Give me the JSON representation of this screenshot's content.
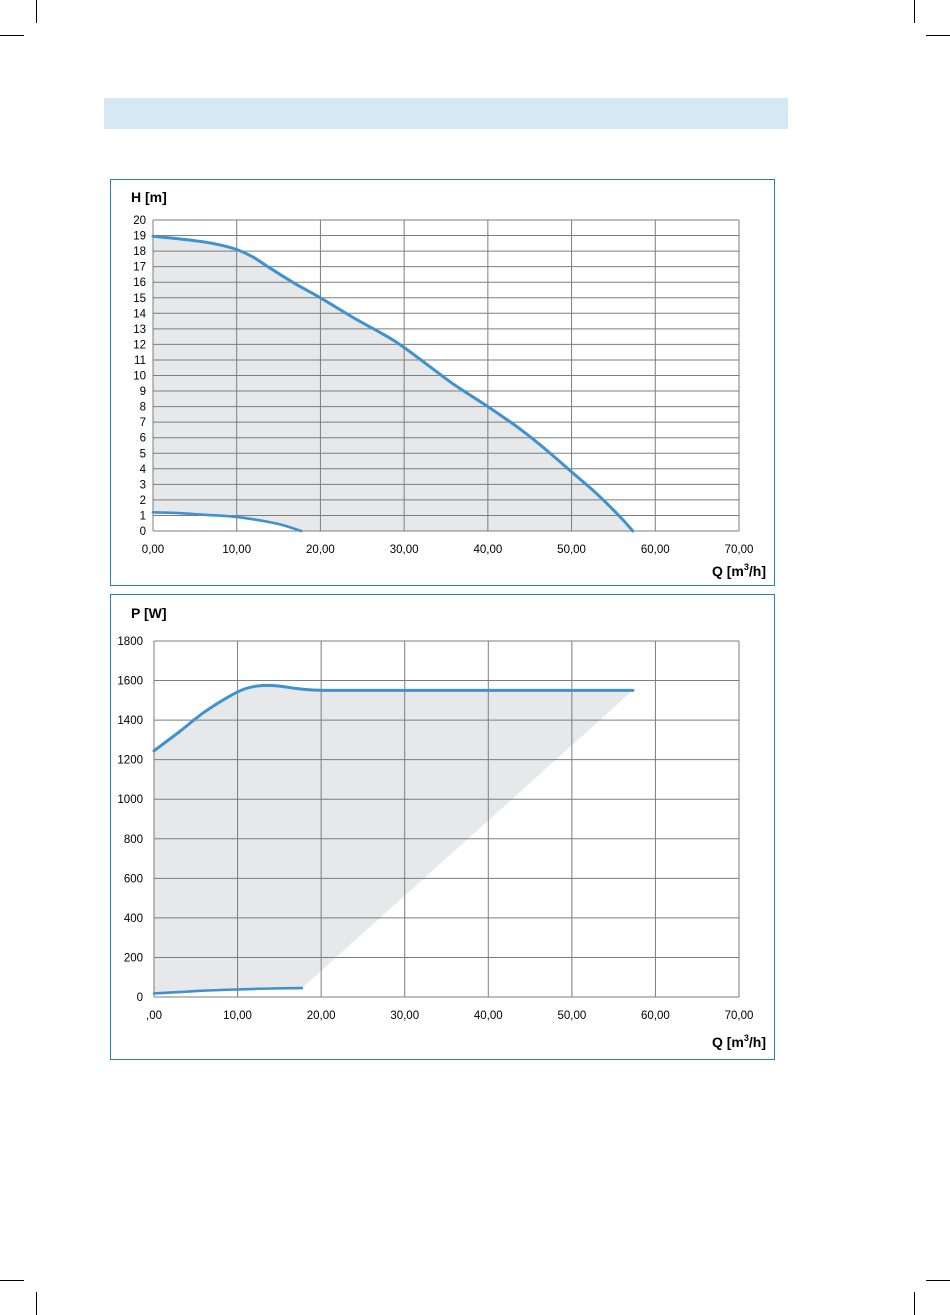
{
  "band": {
    "color": "#d4e9f3"
  },
  "colors": {
    "border": "#2b7fb8",
    "curve": "#3f92cf",
    "fill": "#e6e8e9",
    "grid": "#7d7d7d"
  },
  "chart_data": [
    {
      "type": "area",
      "ylabel": "H [m]",
      "xlabel_prefix": "Q [m",
      "xlabel_sup": "3",
      "xlabel_suffix": "/h]",
      "xlim": [
        0,
        70
      ],
      "ylim": [
        0,
        20
      ],
      "x_ticks": [
        "0,00",
        "10,00",
        "20,00",
        "30,00",
        "40,00",
        "50,00",
        "60,00",
        "70,00"
      ],
      "y_ticks": [
        "0",
        "1",
        "2",
        "3",
        "4",
        "5",
        "6",
        "7",
        "8",
        "9",
        "10",
        "11",
        "12",
        "13",
        "14",
        "15",
        "16",
        "17",
        "18",
        "19",
        "20"
      ],
      "grid": true,
      "series": [
        {
          "x": [
            0,
            3,
            6,
            8,
            10,
            12,
            14,
            17,
            20,
            24,
            28,
            30,
            33,
            36,
            40,
            44,
            47,
            50,
            53,
            56,
            57.3
          ],
          "y": [
            18.95,
            18.8,
            18.6,
            18.4,
            18.1,
            17.6,
            16.9,
            15.9,
            15.0,
            13.7,
            12.5,
            11.8,
            10.6,
            9.4,
            8.0,
            6.5,
            5.2,
            3.8,
            2.4,
            0.8,
            0
          ]
        },
        {
          "x": [
            0,
            3,
            6,
            9,
            12,
            15,
            17.7
          ],
          "y": [
            1.2,
            1.15,
            1.05,
            0.95,
            0.75,
            0.45,
            0
          ]
        }
      ]
    },
    {
      "type": "area",
      "ylabel": "P [W]",
      "xlabel_prefix": "Q [m",
      "xlabel_sup": "3",
      "xlabel_suffix": "/h]",
      "xlim": [
        0,
        70
      ],
      "ylim": [
        0,
        1800
      ],
      "x_ticks": [
        ",00",
        "10,00",
        "20,00",
        "30,00",
        "40,00",
        "50,00",
        "60,00",
        "70,00"
      ],
      "y_ticks": [
        "0",
        "200",
        "400",
        "600",
        "800",
        "1000",
        "1200",
        "1400",
        "1600",
        "1800"
      ],
      "grid": true,
      "series": [
        {
          "x": [
            0,
            3,
            6,
            9,
            11,
            13,
            15,
            17,
            19,
            21,
            25,
            30,
            40,
            50,
            57.3
          ],
          "y": [
            1245,
            1340,
            1440,
            1520,
            1560,
            1575,
            1572,
            1560,
            1552,
            1550,
            1550,
            1550,
            1550,
            1550,
            1550
          ]
        },
        {
          "x": [
            0,
            3,
            6,
            10,
            14,
            17.7
          ],
          "y": [
            18,
            25,
            32,
            38,
            43,
            45
          ]
        }
      ]
    }
  ]
}
